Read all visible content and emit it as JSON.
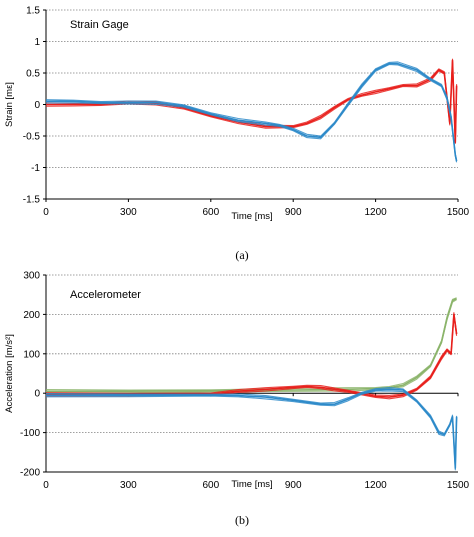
{
  "chart_data": [
    {
      "type": "line",
      "annotation": "Strain Gage",
      "xlabel": "Time [ms]",
      "ylabel": "Strain [mε]",
      "xlim": [
        0,
        1500
      ],
      "ylim": [
        -1.5,
        1.5
      ],
      "xticks": [
        "0",
        "300",
        "600",
        "900",
        "1200",
        "1500"
      ],
      "yticks": [
        "-1.5",
        "-1",
        "-0.5",
        "0",
        "0.5",
        "1",
        "1.5"
      ],
      "grid": "horizontal-dotted",
      "caption": "(a)",
      "series": [
        {
          "color": "#e8201c",
          "x": [
            0,
            100,
            200,
            300,
            400,
            500,
            600,
            700,
            800,
            900,
            950,
            1000,
            1050,
            1100,
            1150,
            1200,
            1250,
            1300,
            1350,
            1400,
            1430,
            1450,
            1470,
            1480,
            1490,
            1495
          ],
          "y": [
            0.0,
            0.0,
            0.0,
            0.03,
            0.02,
            -0.05,
            -0.18,
            -0.28,
            -0.35,
            -0.35,
            -0.3,
            -0.2,
            -0.05,
            0.08,
            0.15,
            0.2,
            0.25,
            0.3,
            0.3,
            0.4,
            0.55,
            0.5,
            -0.3,
            0.7,
            -0.6,
            0.3
          ]
        },
        {
          "color": "#2d8ac9",
          "x": [
            0,
            100,
            200,
            300,
            400,
            500,
            600,
            700,
            800,
            850,
            900,
            950,
            1000,
            1050,
            1100,
            1150,
            1200,
            1250,
            1280,
            1350,
            1400,
            1440,
            1460,
            1475,
            1490,
            1495
          ],
          "y": [
            0.05,
            0.05,
            0.03,
            0.03,
            0.03,
            -0.02,
            -0.15,
            -0.25,
            -0.3,
            -0.33,
            -0.4,
            -0.5,
            -0.52,
            -0.3,
            0.0,
            0.3,
            0.55,
            0.65,
            0.65,
            0.55,
            0.4,
            0.3,
            0.1,
            -0.2,
            -0.8,
            -0.9
          ]
        }
      ]
    },
    {
      "type": "line",
      "annotation": "Accelerometer",
      "xlabel": "Time [ms]",
      "ylabel": "Acceleration [m/s²]",
      "xlim": [
        0,
        1500
      ],
      "ylim": [
        -200,
        300
      ],
      "xticks": [
        "0",
        "300",
        "600",
        "900",
        "1200",
        "1500"
      ],
      "yticks": [
        "-200",
        "-100",
        "0",
        "100",
        "200",
        "300"
      ],
      "grid": "horizontal-dotted",
      "caption": "(b)",
      "series": [
        {
          "color": "#8bb46a",
          "x": [
            0,
            300,
            600,
            900,
            1100,
            1200,
            1250,
            1300,
            1350,
            1400,
            1440,
            1460,
            1480,
            1495
          ],
          "y": [
            5,
            5,
            6,
            8,
            10,
            12,
            14,
            20,
            40,
            70,
            130,
            190,
            235,
            240
          ]
        },
        {
          "color": "#e8201c",
          "x": [
            0,
            300,
            600,
            700,
            800,
            900,
            950,
            1000,
            1050,
            1100,
            1200,
            1250,
            1300,
            1350,
            1400,
            1440,
            1460,
            1475,
            1485,
            1495
          ],
          "y": [
            -3,
            -3,
            -2,
            5,
            10,
            15,
            17,
            15,
            10,
            5,
            -8,
            -10,
            -5,
            10,
            40,
            90,
            110,
            100,
            200,
            150
          ]
        },
        {
          "color": "#2d8ac9",
          "x": [
            0,
            300,
            600,
            700,
            800,
            900,
            1000,
            1050,
            1100,
            1150,
            1200,
            1250,
            1300,
            1350,
            1400,
            1430,
            1450,
            1470,
            1480,
            1490,
            1495
          ],
          "y": [
            -5,
            -5,
            -5,
            -6,
            -10,
            -18,
            -28,
            -28,
            -15,
            0,
            8,
            10,
            8,
            -20,
            -60,
            -100,
            -105,
            -80,
            -60,
            -190,
            -60
          ]
        }
      ]
    }
  ]
}
